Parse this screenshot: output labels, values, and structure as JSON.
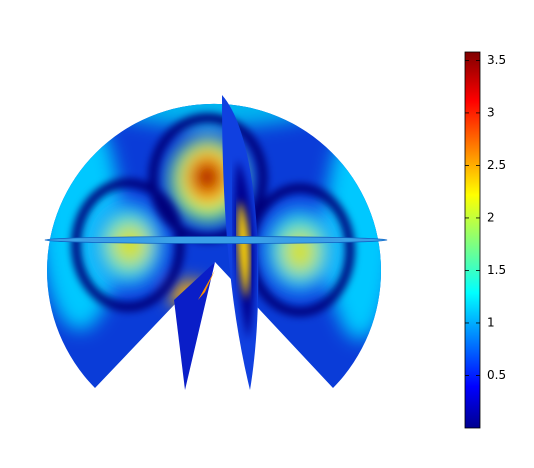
{
  "chart_data": {
    "type": "slice",
    "colormap": "jet",
    "clim": [
      0,
      3.58
    ],
    "colorbar_ticks": [
      0.5,
      1,
      1.5,
      2,
      2.5,
      3,
      3.5
    ]
  }
}
